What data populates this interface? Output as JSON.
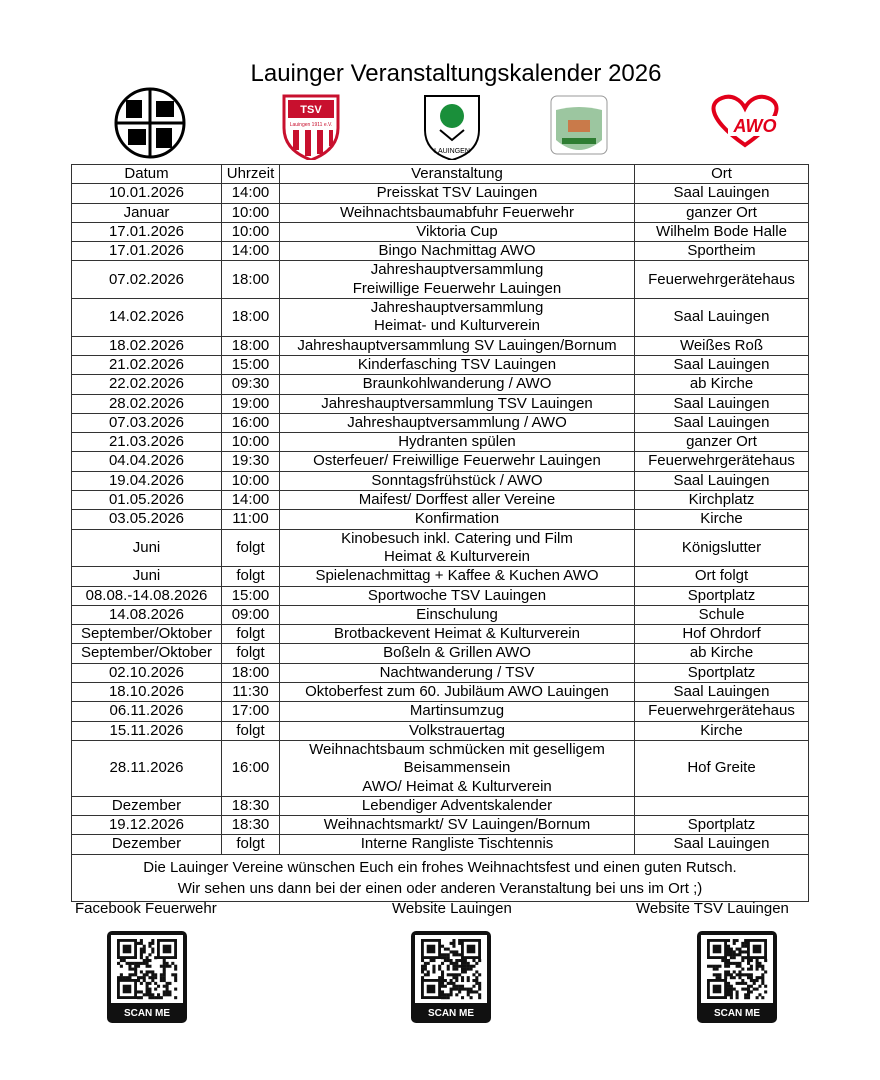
{
  "title": "Lauinger Veranstaltungskalender 2026",
  "logos": {
    "tsv": "TSV",
    "tsv_sub": "Lauingen 1911 e.V.",
    "lauingen": "LAUINGEN",
    "awo": "AWO"
  },
  "table": {
    "header": [
      "Datum",
      "Uhrzeit",
      "Veranstaltung",
      "Ort"
    ],
    "rows": [
      {
        "date": "10.01.2026",
        "time": "14:00",
        "event": [
          "Preisskat TSV Lauingen"
        ],
        "place": "Saal Lauingen"
      },
      {
        "date": "Januar",
        "time": "10:00",
        "event": [
          "Weihnachtsbaumabfuhr Feuerwehr"
        ],
        "place": "ganzer Ort"
      },
      {
        "date": "17.01.2026",
        "time": "10:00",
        "event": [
          "Viktoria Cup"
        ],
        "place": "Wilhelm Bode Halle"
      },
      {
        "date": "17.01.2026",
        "time": "14:00",
        "event": [
          "Bingo Nachmittag AWO"
        ],
        "place": "Sportheim"
      },
      {
        "date": "07.02.2026",
        "time": "18:00",
        "event": [
          "Jahreshauptversammlung",
          "Freiwillige Feuerwehr Lauingen"
        ],
        "place": "Feuerwehrgerätehaus"
      },
      {
        "date": "14.02.2026",
        "time": "18:00",
        "event": [
          "Jahreshauptversammlung",
          "Heimat- und Kulturverein"
        ],
        "place": "Saal Lauingen"
      },
      {
        "date": "18.02.2026",
        "time": "18:00",
        "event": [
          "Jahreshauptversammlung SV Lauingen/Bornum"
        ],
        "place": "Weißes Roß"
      },
      {
        "date": "21.02.2026",
        "time": "15:00",
        "event": [
          "Kinderfasching TSV Lauingen"
        ],
        "place": "Saal Lauingen"
      },
      {
        "date": "22.02.2026",
        "time": "09:30",
        "event": [
          "Braunkohlwanderung / AWO"
        ],
        "place": "ab Kirche"
      },
      {
        "date": "28.02.2026",
        "time": "19:00",
        "event": [
          "Jahreshauptversammlung TSV Lauingen"
        ],
        "place": "Saal Lauingen"
      },
      {
        "date": "07.03.2026",
        "time": "16:00",
        "event": [
          "Jahreshauptversammlung / AWO"
        ],
        "place": "Saal Lauingen"
      },
      {
        "date": "21.03.2026",
        "time": "10:00",
        "event": [
          "Hydranten spülen"
        ],
        "place": "ganzer Ort"
      },
      {
        "date": "04.04.2026",
        "time": "19:30",
        "event": [
          "Osterfeuer/ Freiwillige Feuerwehr Lauingen"
        ],
        "place": "Feuerwehrgerätehaus"
      },
      {
        "date": "19.04.2026",
        "time": "10:00",
        "event": [
          "Sonntagsfrühstück / AWO"
        ],
        "place": "Saal Lauingen"
      },
      {
        "date": "01.05.2026",
        "time": "14:00",
        "event": [
          "Maifest/ Dorffest aller Vereine"
        ],
        "place": "Kirchplatz"
      },
      {
        "date": "03.05.2026",
        "time": "11:00",
        "event": [
          "Konfirmation"
        ],
        "place": "Kirche"
      },
      {
        "date": "Juni",
        "time": "folgt",
        "event": [
          "Kinobesuch inkl. Catering und Film",
          "Heimat & Kulturverein"
        ],
        "place": "Königslutter"
      },
      {
        "date": "Juni",
        "time": "folgt",
        "event": [
          "Spielenachmittag + Kaffee & Kuchen AWO"
        ],
        "place": "Ort folgt"
      },
      {
        "date": "08.08.-14.08.2026",
        "time": "15:00",
        "event": [
          "Sportwoche TSV Lauingen"
        ],
        "place": "Sportplatz"
      },
      {
        "date": "14.08.2026",
        "time": "09:00",
        "event": [
          "Einschulung"
        ],
        "place": "Schule"
      },
      {
        "date": "September/Oktober",
        "time": "folgt",
        "event": [
          "Brotbackevent Heimat & Kulturverein"
        ],
        "place": "Hof Ohrdorf"
      },
      {
        "date": "September/Oktober",
        "time": "folgt",
        "event": [
          "Boßeln & Grillen AWO"
        ],
        "place": "ab Kirche"
      },
      {
        "date": "02.10.2026",
        "time": "18:00",
        "event": [
          "Nachtwanderung / TSV"
        ],
        "place": "Sportplatz"
      },
      {
        "date": "18.10.2026",
        "time": "11:30",
        "event": [
          "Oktoberfest zum 60. Jubiläum AWO Lauingen"
        ],
        "place": "Saal Lauingen"
      },
      {
        "date": "06.11.2026",
        "time": "17:00",
        "event": [
          "Martinsumzug"
        ],
        "place": "Feuerwehrgerätehaus"
      },
      {
        "date": "15.11.2026",
        "time": "folgt",
        "event": [
          "Volkstrauertag"
        ],
        "place": "Kirche"
      },
      {
        "date": "28.11.2026",
        "time": "16:00",
        "event": [
          "Weihnachtsbaum schmücken mit geselligem",
          "Beisammensein",
          "AWO/ Heimat & Kulturverein"
        ],
        "place": "Hof Greite"
      },
      {
        "date": "Dezember",
        "time": "18:30",
        "event": [
          "Lebendiger Adventskalender"
        ]
      },
      {
        "date": "19.12.2026",
        "time": "18:30",
        "event": [
          "Weihnachtsmarkt/ SV Lauingen/Bornum"
        ],
        "place": "Sportplatz"
      },
      {
        "date": "Dezember",
        "time": "folgt",
        "event": [
          "Interne Rangliste Tischtennis"
        ],
        "place": "Saal Lauingen"
      }
    ],
    "footer": [
      "Die Lauinger Vereine wünschen Euch ein frohes Weihnachtsfest und einen guten Rutsch.",
      "Wir sehen uns dann bei der einen oder anderen Veranstaltung bei uns im Ort ;)"
    ]
  },
  "qr": [
    {
      "label": "Facebook Feuerwehr",
      "button": "SCAN ME"
    },
    {
      "label": "Website Lauingen",
      "button": "SCAN ME"
    },
    {
      "label": "Website TSV Lauingen",
      "button": "SCAN ME"
    }
  ]
}
